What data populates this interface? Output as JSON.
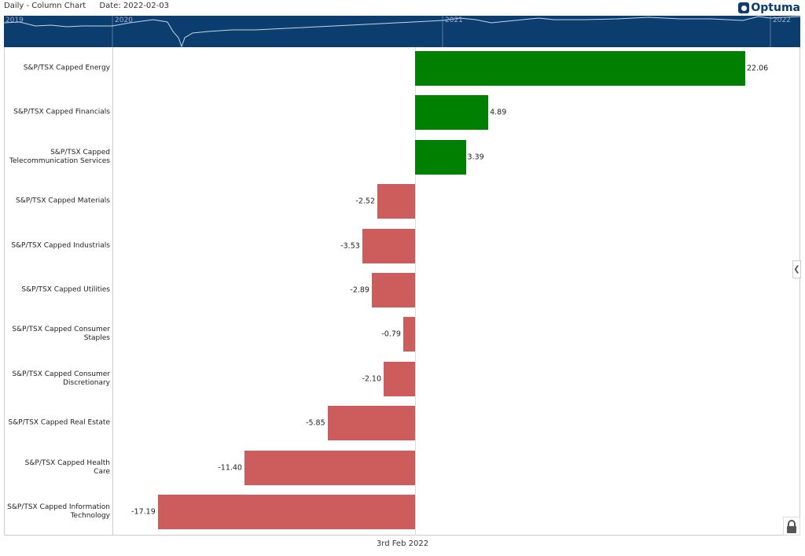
{
  "header": {
    "chart_type": "Daily - Column Chart",
    "date": "Date: 2022-02-03",
    "logo": "Optuma"
  },
  "navigator": {
    "years": [
      "2019",
      "2020",
      "2021",
      "2022"
    ]
  },
  "colors": {
    "positive": "#008000",
    "negative": "#cd5c5c",
    "navigator": "#0b3d6f"
  },
  "chart_data": {
    "type": "bar",
    "orientation": "horizontal",
    "categories": [
      "S&P/TSX Capped Energy",
      "S&P/TSX Capped Financials",
      "S&P/TSX Capped Telecommunication Services",
      "S&P/TSX Capped Materials",
      "S&P/TSX Capped Industrials",
      "S&P/TSX Capped Utilities",
      "S&P/TSX Capped Consumer Staples",
      "S&P/TSX Capped Consumer Discretionary",
      "S&P/TSX Capped Real Estate",
      "S&P/TSX Capped Health Care",
      "S&P/TSX Capped Information Technology"
    ],
    "values": [
      22.06,
      4.89,
      3.39,
      -2.52,
      -3.53,
      -2.89,
      -0.79,
      -2.1,
      -5.85,
      -11.4,
      -17.19
    ],
    "value_labels": [
      "22.06",
      "4.89",
      "3.39",
      "-2.52",
      "-3.53",
      "-2.89",
      "-0.79",
      "-2.10",
      "-5.85",
      "-11.40",
      "-17.19"
    ],
    "xlabel": "3rd Feb 2022"
  }
}
